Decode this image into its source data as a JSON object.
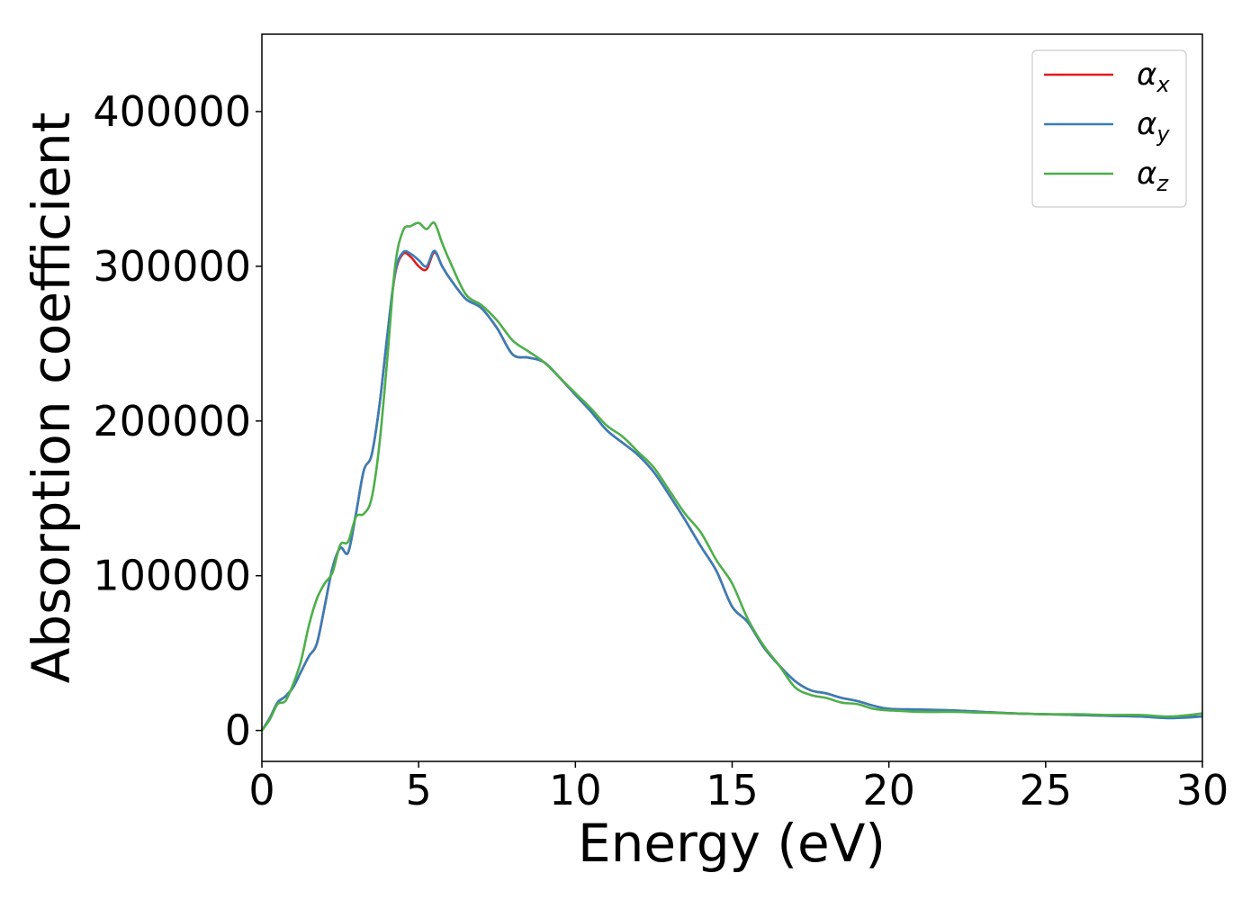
{
  "chart_data": {
    "type": "line",
    "xlabel": "Energy (eV)",
    "ylabel": "Absorption coefficient",
    "xlim": [
      0,
      30
    ],
    "ylim": [
      -20000,
      450000
    ],
    "xticks": [
      0,
      5,
      10,
      15,
      20,
      25,
      30
    ],
    "yticks": [
      0,
      100000,
      200000,
      300000,
      400000
    ],
    "grid": false,
    "legend_position": "top-right",
    "x": [
      0,
      0.25,
      0.5,
      0.75,
      1.0,
      1.25,
      1.5,
      1.75,
      2.0,
      2.25,
      2.5,
      2.75,
      3.0,
      3.25,
      3.5,
      3.75,
      4.0,
      4.25,
      4.5,
      4.75,
      5.0,
      5.25,
      5.5,
      5.75,
      6.0,
      6.5,
      7.0,
      7.5,
      8.0,
      8.5,
      9.0,
      9.5,
      10.0,
      10.5,
      11.0,
      11.5,
      12.0,
      12.5,
      13.0,
      13.5,
      14.0,
      14.5,
      15.0,
      15.5,
      16.0,
      16.5,
      17.0,
      17.5,
      18.0,
      18.5,
      19.0,
      19.5,
      20.0,
      21.0,
      22.0,
      23.0,
      24.0,
      25.0,
      26.0,
      27.0,
      28.0,
      29.0,
      30.0
    ],
    "series": [
      {
        "name": "α",
        "subscript": "x",
        "color": "#e41a1c",
        "values": [
          0,
          8000,
          18000,
          22000,
          28000,
          38000,
          48000,
          56000,
          80000,
          105000,
          118000,
          115000,
          140000,
          168000,
          178000,
          210000,
          255000,
          295000,
          308000,
          306000,
          300000,
          298000,
          309000,
          300000,
          292000,
          279000,
          273000,
          260000,
          243000,
          241000,
          238000,
          228000,
          217000,
          206000,
          194000,
          186000,
          178000,
          167000,
          152000,
          136000,
          119000,
          103000,
          80000,
          70000,
          54000,
          42000,
          32000,
          26000,
          24000,
          21000,
          19000,
          16000,
          14000,
          13500,
          13000,
          12000,
          11000,
          10500,
          10000,
          9500,
          9000,
          8500,
          9000
        ]
      },
      {
        "name": "α",
        "subscript": "y",
        "color": "#377eb8",
        "values": [
          0,
          8000,
          18000,
          22000,
          28000,
          38000,
          48000,
          56000,
          80000,
          105000,
          118000,
          115000,
          140000,
          168000,
          178000,
          210000,
          255000,
          296000,
          309000,
          308000,
          304000,
          300000,
          310000,
          300000,
          292000,
          279000,
          273000,
          260000,
          243000,
          241000,
          238000,
          228000,
          217000,
          206000,
          194000,
          186000,
          178000,
          167000,
          152000,
          136000,
          119000,
          103000,
          80000,
          70000,
          54000,
          42000,
          32000,
          26000,
          24000,
          21000,
          19000,
          16000,
          14000,
          13500,
          13000,
          12000,
          11000,
          10500,
          10000,
          9500,
          9000,
          8000,
          9000
        ]
      },
      {
        "name": "α",
        "subscript": "z",
        "color": "#4daf4a",
        "values": [
          0,
          7000,
          17000,
          19000,
          30000,
          45000,
          68000,
          85000,
          95000,
          102000,
          120000,
          122000,
          138000,
          140000,
          150000,
          185000,
          240000,
          300000,
          323000,
          326000,
          328000,
          324000,
          328000,
          315000,
          303000,
          282000,
          275000,
          265000,
          252000,
          245000,
          238000,
          228000,
          218000,
          208000,
          197000,
          190000,
          180000,
          170000,
          155000,
          140000,
          128000,
          110000,
          95000,
          72000,
          55000,
          42000,
          28000,
          23000,
          21000,
          18000,
          17000,
          14000,
          13000,
          12000,
          12000,
          11500,
          11000,
          10500,
          10500,
          10000,
          10000,
          9000,
          11000
        ]
      }
    ]
  }
}
